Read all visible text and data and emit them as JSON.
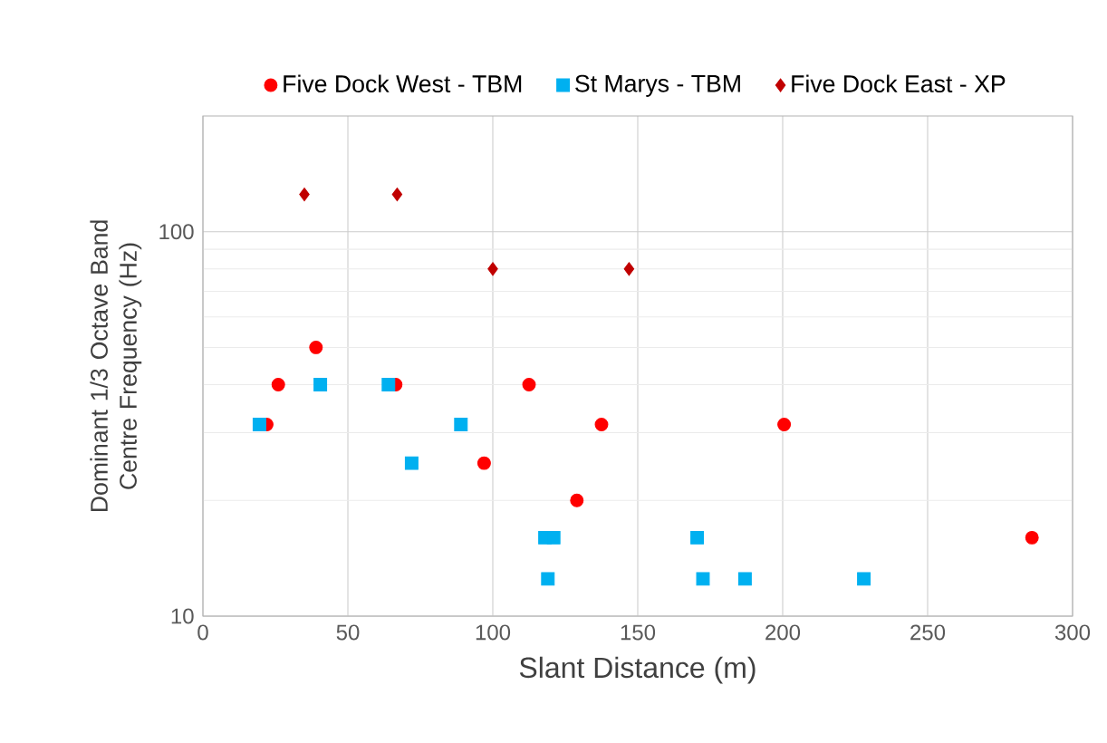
{
  "chart_data": {
    "type": "scatter",
    "xlabel": "Slant Distance (m)",
    "ylabel": "Dominant 1/3 Octave Band Centre Frequency (Hz)",
    "xlim": [
      0,
      300
    ],
    "xticks": [
      0,
      50,
      100,
      150,
      200,
      250,
      300
    ],
    "ylim": [
      10,
      200
    ],
    "yticks": [
      10,
      100
    ],
    "log": "y",
    "grid": true,
    "legend": "top",
    "series": [
      {
        "name": "Five Dock West - TBM",
        "color": "#ff0000",
        "marker": "circle",
        "x": [
          22,
          26,
          39,
          66.5,
          97,
          112.5,
          137.5,
          129,
          200.5,
          286
        ],
        "values": [
          31.5,
          40,
          50,
          40,
          25,
          40,
          31.5,
          20,
          31.5,
          16
        ]
      },
      {
        "name": "St Marys - TBM",
        "color": "#00b0f0",
        "marker": "square",
        "x": [
          19.5,
          40.5,
          64,
          89,
          72,
          118,
          121,
          119,
          170.5,
          172.5,
          187,
          228
        ],
        "values": [
          31.5,
          40,
          40,
          31.5,
          25,
          16,
          16,
          12.5,
          16,
          12.5,
          12.5,
          12.5
        ]
      },
      {
        "name": "Five Dock East - XP",
        "color": "#c00000",
        "marker": "diamond",
        "x": [
          35,
          67,
          100,
          147
        ],
        "values": [
          125,
          125,
          80,
          80
        ]
      }
    ]
  }
}
